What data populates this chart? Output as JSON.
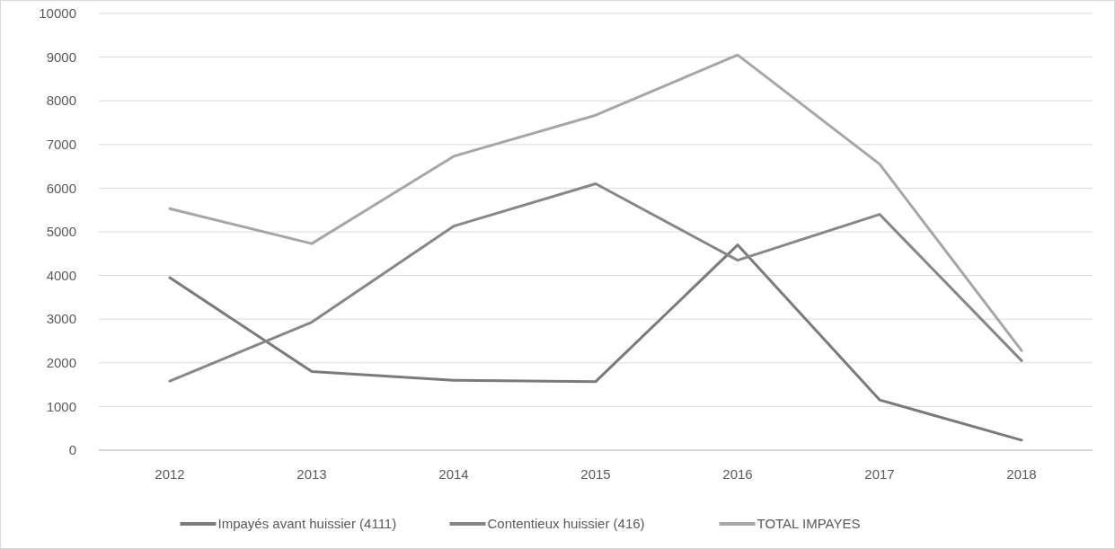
{
  "chart_data": {
    "type": "line",
    "categories": [
      "2012",
      "2013",
      "2014",
      "2015",
      "2016",
      "2017",
      "2018"
    ],
    "series": [
      {
        "name": "Impayés avant huissier (4111)",
        "color": "#7a7a7a",
        "values": [
          3950,
          1800,
          1600,
          1570,
          4700,
          1150,
          230
        ]
      },
      {
        "name": "Contentieux huissier (416)",
        "color": "#878787",
        "values": [
          1580,
          2930,
          5130,
          6100,
          4350,
          5400,
          2050
        ]
      },
      {
        "name": "TOTAL IMPAYES",
        "color": "#a6a6a6",
        "values": [
          5530,
          4730,
          6730,
          7670,
          9050,
          6550,
          2280
        ]
      }
    ],
    "ylim": [
      0,
      10000
    ],
    "yticks": [
      0,
      1000,
      2000,
      3000,
      4000,
      5000,
      6000,
      7000,
      8000,
      9000,
      10000
    ],
    "grid": "y",
    "legend": "bottom",
    "marker": "none",
    "line_style": "solid"
  }
}
